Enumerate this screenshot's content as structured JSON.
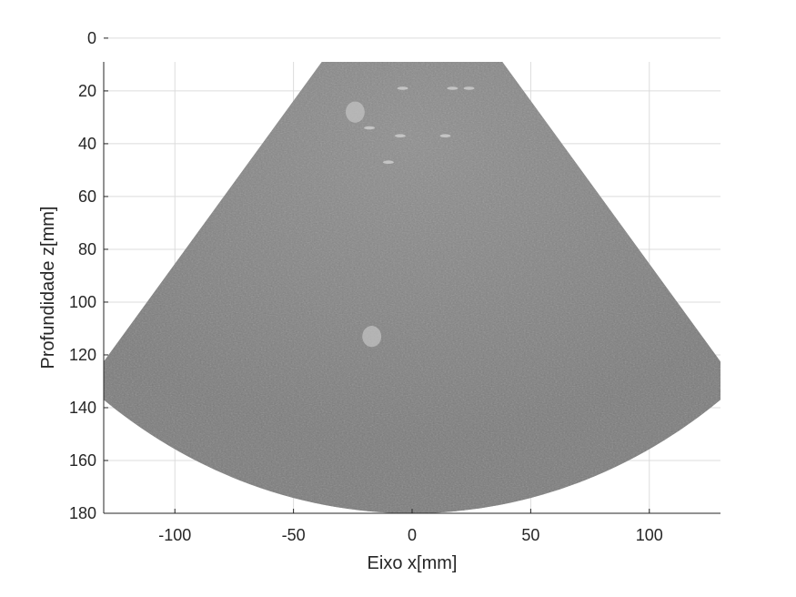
{
  "chart_data": {
    "type": "heatmap",
    "content": "ultrasound B-mode sector image (grayscale)",
    "xlabel": "Eixo x[mm]",
    "ylabel": "Profundidade z[mm]",
    "xlim": [
      -130,
      130
    ],
    "ylim": [
      180,
      9
    ],
    "y_reversed": true,
    "xticks": [
      -100,
      -50,
      0,
      50,
      100
    ],
    "xtick_labels": [
      "-100",
      "-50",
      "0",
      "50",
      "100"
    ],
    "yticks": [
      0,
      20,
      40,
      60,
      80,
      100,
      120,
      140,
      160,
      180
    ],
    "ytick_labels": [
      "0",
      "20",
      "40",
      "60",
      "80",
      "100",
      "120",
      "140",
      "160",
      "180"
    ],
    "grid": true,
    "colormap": "gray",
    "sector": {
      "apex_x": 0,
      "apex_z": -38,
      "inner_radius": 38,
      "outer_radius": 218,
      "half_angle_deg": 39
    },
    "inclusions": [
      {
        "x": -24,
        "z": 28,
        "r": 4
      },
      {
        "x": -17,
        "z": 113,
        "r": 4
      }
    ],
    "colors": {
      "background": "#ffffff",
      "image_base": "#7b7b7b",
      "image_bright": "#9a9a9a",
      "axis": "#262626",
      "grid": "#dcdcdc"
    }
  }
}
